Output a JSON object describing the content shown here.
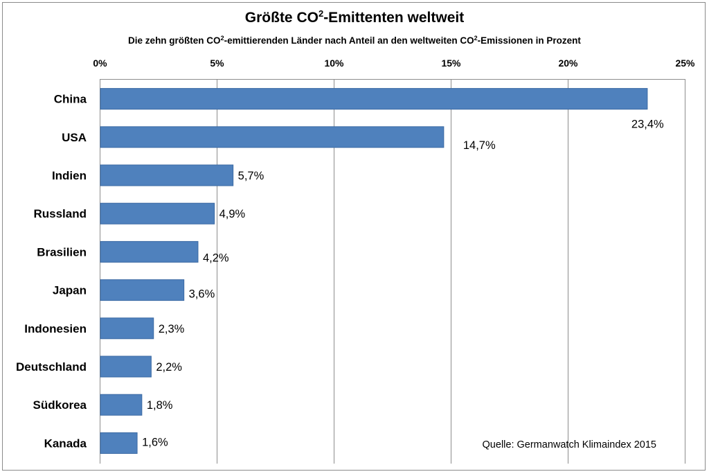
{
  "chart_data": {
    "type": "bar",
    "orientation": "horizontal",
    "title": {
      "prefix": "Größte CO",
      "superscript": "2",
      "suffix": "-Emittenten weltweit"
    },
    "subtitle": {
      "part1": "Die zehn größten CO",
      "sup1": "2",
      "part2": "-emittierenden Länder nach Anteil an den weltweiten CO",
      "sup2": "2",
      "part3": "-Emissionen in Prozent"
    },
    "categories": [
      "China",
      "USA",
      "Indien",
      "Russland",
      "Brasilien",
      "Japan",
      "Indonesien",
      "Deutschland",
      "Südkorea",
      "Kanada"
    ],
    "values": [
      23.4,
      14.7,
      5.7,
      4.9,
      4.2,
      3.6,
      2.3,
      2.2,
      1.8,
      1.6
    ],
    "data_labels": [
      "23,4%",
      "14,7%",
      "5,7%",
      "4,9%",
      "4,2%",
      "3,6%",
      "2,3%",
      "2,2%",
      "1,8%",
      "1,6%"
    ],
    "xlim": [
      0,
      25
    ],
    "ticks": [
      0,
      5,
      10,
      15,
      20,
      25
    ],
    "tick_labels": [
      "0%",
      "5%",
      "10%",
      "15%",
      "20%",
      "25%"
    ],
    "axis_position": "top",
    "grid": true,
    "legend": "none",
    "source": "Quelle: Germanwatch Klimaindex 2015",
    "bar_color": "#4f81bd"
  }
}
